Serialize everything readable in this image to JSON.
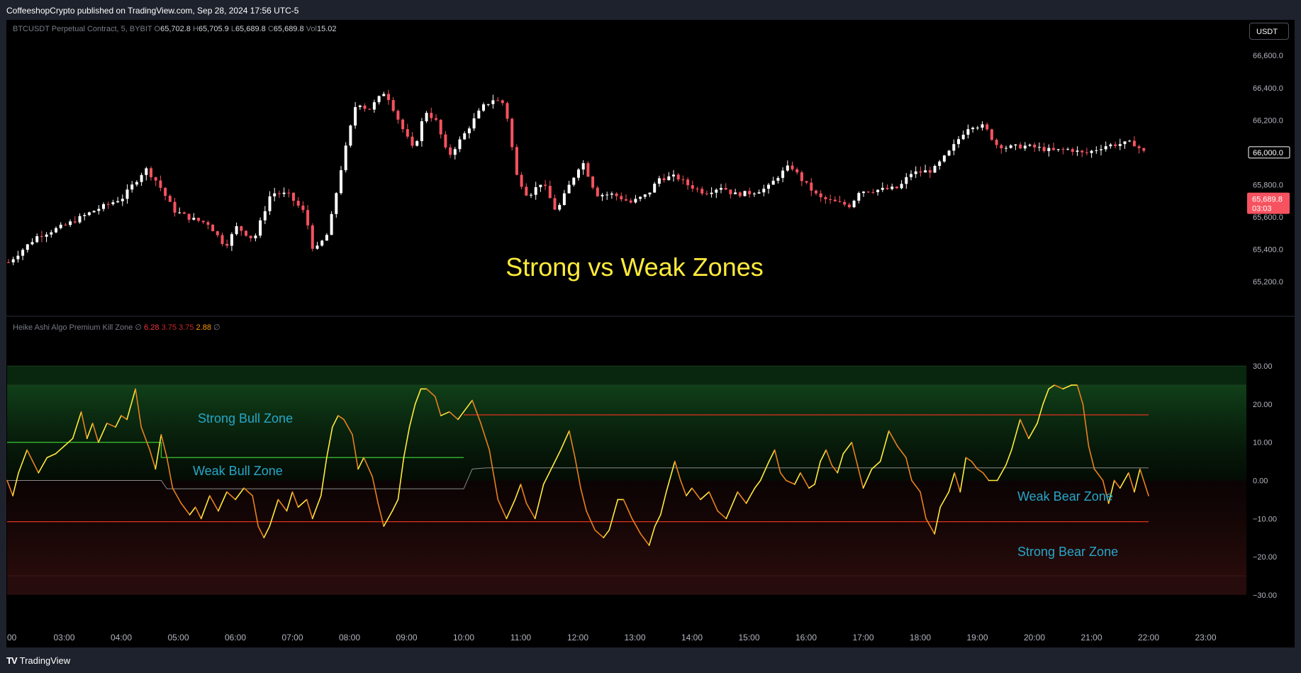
{
  "header": {
    "published": "CoffeeshopCrypto published on TradingView.com, Sep 28, 2024 17:56 UTC-5"
  },
  "footer": {
    "brand": "TradingView"
  },
  "symbol_legend": {
    "name": "BTCUSDT Perpetual Contract, 5, BYBIT",
    "o_label": "O",
    "o": "65,702.8",
    "h_label": "H",
    "h": "65,705.9",
    "l_label": "L",
    "l": "65,689.8",
    "c_label": "C",
    "c": "65,689.8",
    "vol_label": "Vol",
    "vol": "15.02"
  },
  "indicator_legend": {
    "name": "Heike Ashi Algo Premium Kill Zone",
    "sym1": "∅",
    "v1": "6.28",
    "v2": "3.75",
    "v3": "3.75",
    "v4": "2.88",
    "sym2": "∅"
  },
  "currency_button": "USDT",
  "colors": {
    "up": "#ffffff",
    "down": "#f7525f",
    "bg": "#000000",
    "bull_band": "#0d3d12",
    "bear_band": "#2b0f0f",
    "green_line": "#35b82e",
    "red_line": "#e0321f",
    "osc_yellow": "#ffeb3b",
    "osc_orange": "#e8801e",
    "title_yellow": "#ffeb3b",
    "zone_text": "#26a7c9"
  },
  "chart_data": [
    {
      "type": "candlestick",
      "title": "Strong vs Weak Zones",
      "y_ticks": [
        "66,600.0",
        "66,400.0",
        "66,200.0",
        "66,000.0",
        "65,800.0",
        "65,600.0",
        "65,400.0",
        "65,200.0"
      ],
      "ylim": [
        65100,
        66680
      ],
      "last_price_label": "66,000.0",
      "current_price": {
        "value": "65,689.8",
        "countdown": "03:03"
      },
      "x_ticks": [
        "00",
        "03:00",
        "04:00",
        "05:00",
        "06:00",
        "07:00",
        "08:00",
        "09:00",
        "10:00",
        "11:00",
        "12:00",
        "13:00",
        "14:00",
        "15:00",
        "16:00",
        "17:00",
        "18:00",
        "19:00",
        "20:00",
        "21:00",
        "22:00",
        "23:00"
      ],
      "close_path": [
        [
          0.0,
          65320
        ],
        [
          0.5,
          65480
        ],
        [
          1.0,
          65550
        ],
        [
          1.5,
          65640
        ],
        [
          2.0,
          65720
        ],
        [
          2.4,
          65900
        ],
        [
          2.6,
          65820
        ],
        [
          2.9,
          65640
        ],
        [
          3.2,
          65590
        ],
        [
          3.5,
          65560
        ],
        [
          3.8,
          65420
        ],
        [
          4.0,
          65540
        ],
        [
          4.3,
          65460
        ],
        [
          4.6,
          65750
        ],
        [
          4.9,
          65740
        ],
        [
          5.2,
          65620
        ],
        [
          5.35,
          65380
        ],
        [
          5.6,
          65500
        ],
        [
          5.85,
          65940
        ],
        [
          6.1,
          66320
        ],
        [
          6.3,
          66260
        ],
        [
          6.6,
          66380
        ],
        [
          6.9,
          66150
        ],
        [
          7.1,
          66010
        ],
        [
          7.3,
          66260
        ],
        [
          7.5,
          66190
        ],
        [
          7.7,
          65970
        ],
        [
          8.0,
          66120
        ],
        [
          8.3,
          66280
        ],
        [
          8.5,
          66330
        ],
        [
          8.7,
          66300
        ],
        [
          8.9,
          65860
        ],
        [
          9.1,
          65730
        ],
        [
          9.35,
          65820
        ],
        [
          9.6,
          65630
        ],
        [
          9.8,
          65780
        ],
        [
          10.05,
          65950
        ],
        [
          10.3,
          65740
        ],
        [
          10.6,
          65740
        ],
        [
          10.9,
          65690
        ],
        [
          11.2,
          65740
        ],
        [
          11.4,
          65840
        ],
        [
          11.7,
          65850
        ],
        [
          11.9,
          65800
        ],
        [
          12.2,
          65750
        ],
        [
          12.5,
          65790
        ],
        [
          12.7,
          65740
        ],
        [
          13.0,
          65750
        ],
        [
          13.3,
          65780
        ],
        [
          13.5,
          65860
        ],
        [
          13.7,
          65920
        ],
        [
          13.9,
          65830
        ],
        [
          14.2,
          65720
        ],
        [
          14.5,
          65690
        ],
        [
          14.75,
          65670
        ],
        [
          14.9,
          65760
        ],
        [
          15.3,
          65770
        ],
        [
          15.6,
          65780
        ],
        [
          15.8,
          65870
        ],
        [
          16.2,
          65890
        ],
        [
          16.5,
          66010
        ],
        [
          16.7,
          66110
        ],
        [
          16.85,
          66170
        ],
        [
          17.1,
          66160
        ],
        [
          17.3,
          66050
        ],
        [
          17.5,
          66030
        ],
        [
          17.8,
          66040
        ],
        [
          18.0,
          66030
        ],
        [
          18.3,
          66010
        ],
        [
          18.6,
          66020
        ],
        [
          18.85,
          65990
        ],
        [
          19.2,
          66040
        ],
        [
          19.4,
          66050
        ],
        [
          19.7,
          66060
        ],
        [
          19.9,
          66000
        ]
      ]
    },
    {
      "type": "line",
      "y_ticks": [
        "30.00",
        "20.00",
        "10.00",
        "0.00",
        "−10.00",
        "−20.00",
        "−30.00"
      ],
      "ylim": [
        -33,
        33
      ],
      "levels": {
        "extreme_top": 30,
        "upper_band": 25,
        "lower_band": -25,
        "bottom": -30
      },
      "upper_line": [
        [
          0,
          10
        ],
        [
          2.7,
          10
        ],
        [
          2.7,
          6
        ],
        [
          8.0,
          6
        ],
        [
          8.0,
          17.2
        ],
        [
          20,
          17.2
        ]
      ],
      "mid_line": [
        [
          0,
          0
        ],
        [
          2.7,
          0
        ],
        [
          2.8,
          -2.2
        ],
        [
          8.0,
          -2.2
        ],
        [
          8.15,
          3
        ],
        [
          8.4,
          3.3
        ],
        [
          20,
          3.3
        ]
      ],
      "lower_line": [
        [
          0,
          -10.8
        ],
        [
          20,
          -10.8
        ]
      ],
      "oscillator": [
        [
          0.0,
          0
        ],
        [
          0.1,
          -4
        ],
        [
          0.2,
          2
        ],
        [
          0.35,
          8
        ],
        [
          0.45,
          5
        ],
        [
          0.55,
          2
        ],
        [
          0.7,
          6
        ],
        [
          0.85,
          7
        ],
        [
          1.0,
          9
        ],
        [
          1.15,
          11
        ],
        [
          1.3,
          18
        ],
        [
          1.4,
          11
        ],
        [
          1.5,
          15
        ],
        [
          1.6,
          10
        ],
        [
          1.75,
          15
        ],
        [
          1.9,
          14
        ],
        [
          2.0,
          17
        ],
        [
          2.1,
          16
        ],
        [
          2.25,
          24
        ],
        [
          2.35,
          14
        ],
        [
          2.5,
          8
        ],
        [
          2.6,
          3
        ],
        [
          2.7,
          12
        ],
        [
          2.8,
          6
        ],
        [
          2.9,
          -2
        ],
        [
          3.05,
          -6
        ],
        [
          3.2,
          -9
        ],
        [
          3.3,
          -7
        ],
        [
          3.4,
          -10
        ],
        [
          3.55,
          -4
        ],
        [
          3.7,
          -8
        ],
        [
          3.85,
          -3
        ],
        [
          4.0,
          -5
        ],
        [
          4.15,
          -2
        ],
        [
          4.3,
          -4
        ],
        [
          4.4,
          -12
        ],
        [
          4.5,
          -15
        ],
        [
          4.6,
          -12
        ],
        [
          4.75,
          -5
        ],
        [
          4.9,
          -8
        ],
        [
          5.0,
          -3
        ],
        [
          5.1,
          -7
        ],
        [
          5.25,
          -5
        ],
        [
          5.35,
          -10
        ],
        [
          5.5,
          -4
        ],
        [
          5.6,
          6
        ],
        [
          5.7,
          14
        ],
        [
          5.8,
          17
        ],
        [
          5.9,
          16
        ],
        [
          6.05,
          12
        ],
        [
          6.15,
          3
        ],
        [
          6.25,
          6
        ],
        [
          6.4,
          1
        ],
        [
          6.5,
          -6
        ],
        [
          6.6,
          -12
        ],
        [
          6.75,
          -8
        ],
        [
          6.85,
          -5
        ],
        [
          6.95,
          6
        ],
        [
          7.05,
          14
        ],
        [
          7.15,
          20
        ],
        [
          7.25,
          24
        ],
        [
          7.35,
          24
        ],
        [
          7.5,
          22
        ],
        [
          7.6,
          17
        ],
        [
          7.75,
          18
        ],
        [
          7.9,
          16
        ],
        [
          8.0,
          18
        ],
        [
          8.15,
          21
        ],
        [
          8.3,
          15
        ],
        [
          8.45,
          8
        ],
        [
          8.6,
          -5
        ],
        [
          8.75,
          -10
        ],
        [
          8.9,
          -5
        ],
        [
          9.0,
          -1
        ],
        [
          9.1,
          -6
        ],
        [
          9.25,
          -10
        ],
        [
          9.4,
          -1
        ],
        [
          9.5,
          2
        ],
        [
          9.6,
          5
        ],
        [
          9.7,
          8
        ],
        [
          9.85,
          13
        ],
        [
          9.95,
          6
        ],
        [
          10.05,
          -2
        ],
        [
          10.15,
          -8
        ],
        [
          10.3,
          -13
        ],
        [
          10.45,
          -15
        ],
        [
          10.55,
          -13
        ],
        [
          10.7,
          -5
        ],
        [
          10.8,
          -5
        ],
        [
          10.95,
          -10
        ],
        [
          11.1,
          -14
        ],
        [
          11.25,
          -17
        ],
        [
          11.35,
          -12
        ],
        [
          11.45,
          -9
        ],
        [
          11.55,
          -3
        ],
        [
          11.7,
          5
        ],
        [
          11.8,
          0
        ],
        [
          11.9,
          -4
        ],
        [
          12.0,
          -2
        ],
        [
          12.15,
          -5
        ],
        [
          12.3,
          -3
        ],
        [
          12.45,
          -8
        ],
        [
          12.6,
          -10
        ],
        [
          12.8,
          -3
        ],
        [
          12.95,
          -6
        ],
        [
          13.1,
          -2
        ],
        [
          13.2,
          0
        ],
        [
          13.35,
          5
        ],
        [
          13.45,
          8
        ],
        [
          13.55,
          2
        ],
        [
          13.65,
          0
        ],
        [
          13.8,
          -1
        ],
        [
          13.9,
          2
        ],
        [
          14.05,
          -2
        ],
        [
          14.15,
          -1
        ],
        [
          14.25,
          5
        ],
        [
          14.35,
          8
        ],
        [
          14.45,
          4
        ],
        [
          14.55,
          2
        ],
        [
          14.65,
          7
        ],
        [
          14.8,
          10
        ],
        [
          14.9,
          4
        ],
        [
          15.0,
          -2
        ],
        [
          15.15,
          3
        ],
        [
          15.3,
          5
        ],
        [
          15.45,
          13
        ],
        [
          15.6,
          9
        ],
        [
          15.75,
          6
        ],
        [
          15.85,
          0
        ],
        [
          16.0,
          -3
        ],
        [
          16.1,
          -10
        ],
        [
          16.25,
          -14
        ],
        [
          16.35,
          -7
        ],
        [
          16.5,
          -3
        ],
        [
          16.6,
          2
        ],
        [
          16.7,
          -3
        ],
        [
          16.8,
          6
        ],
        [
          16.9,
          5
        ],
        [
          17.0,
          3
        ],
        [
          17.1,
          2
        ],
        [
          17.2,
          0
        ],
        [
          17.35,
          0
        ],
        [
          17.5,
          4
        ],
        [
          17.6,
          8
        ],
        [
          17.75,
          16
        ],
        [
          17.9,
          11
        ],
        [
          18.05,
          15
        ],
        [
          18.15,
          20
        ],
        [
          18.25,
          24
        ],
        [
          18.35,
          25
        ],
        [
          18.5,
          24
        ],
        [
          18.65,
          25
        ],
        [
          18.75,
          25
        ],
        [
          18.85,
          20
        ],
        [
          18.95,
          9
        ],
        [
          19.05,
          3
        ],
        [
          19.2,
          0
        ],
        [
          19.3,
          -6
        ],
        [
          19.4,
          0
        ],
        [
          19.5,
          -2
        ],
        [
          19.65,
          2
        ],
        [
          19.75,
          -3
        ],
        [
          19.85,
          3
        ],
        [
          20.0,
          -4
        ]
      ],
      "annotations": [
        "Strong Bull Zone",
        "Weak Bull Zone",
        "Weak Bear Zone",
        "Strong Bear Zone"
      ]
    }
  ]
}
